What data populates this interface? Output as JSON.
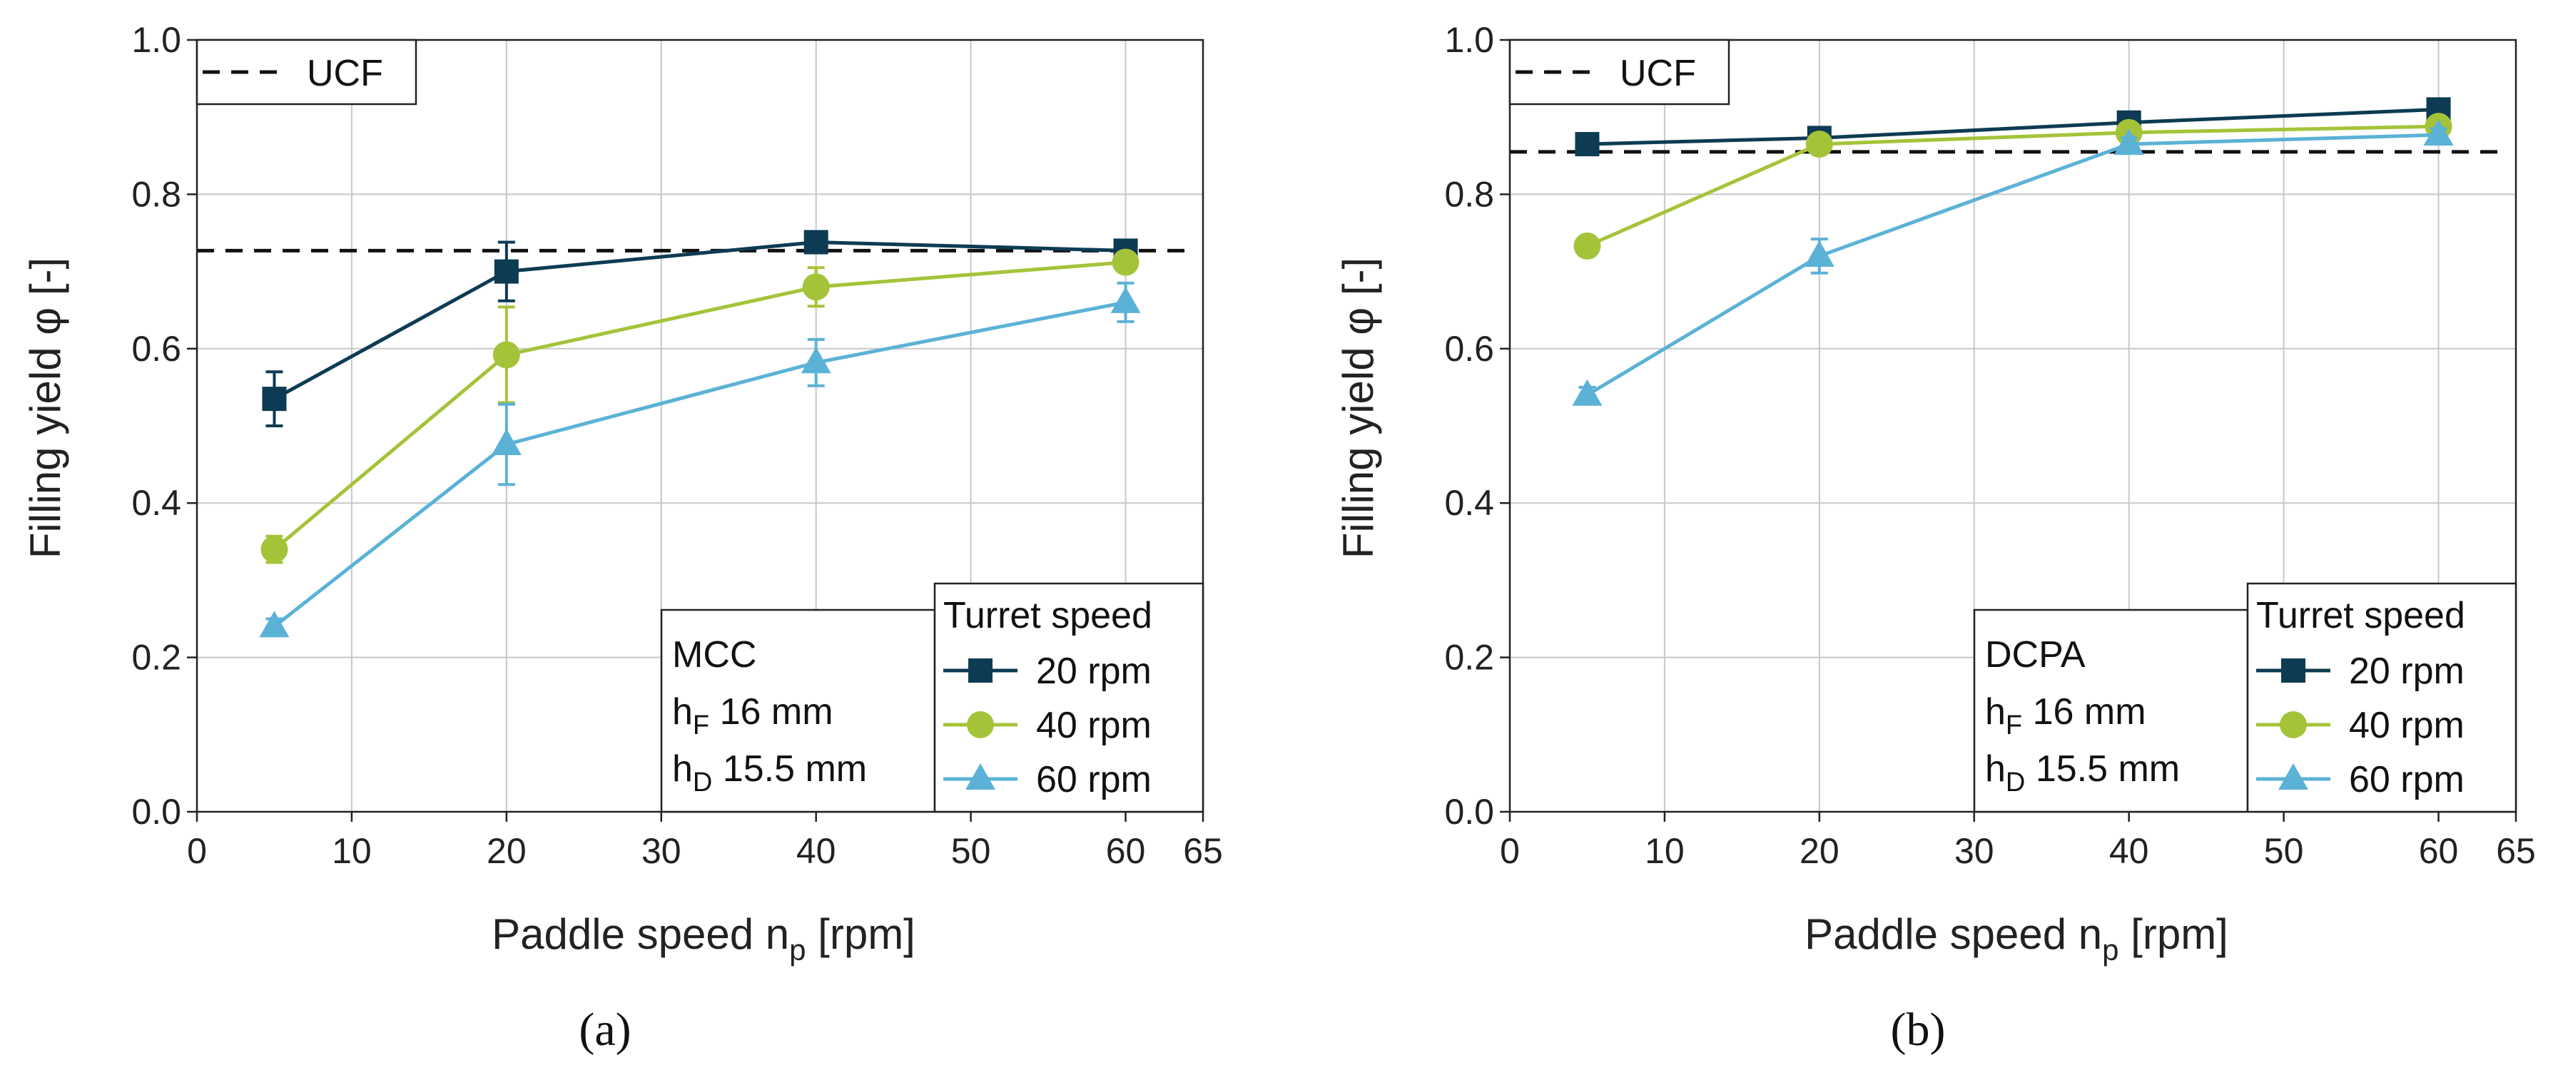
{
  "chart_data": [
    {
      "type": "line",
      "panel": "(a)",
      "x": [
        5,
        20,
        40,
        60
      ],
      "series": [
        {
          "name": "20 rpm",
          "values": [
            0.535,
            0.7,
            0.738,
            0.727
          ],
          "errors": [
            0.035,
            0.038,
            0.01,
            0.01
          ],
          "color": "#0d3b53",
          "marker": "square"
        },
        {
          "name": "40 rpm",
          "values": [
            0.34,
            0.592,
            0.68,
            0.712
          ],
          "errors": [
            0.017,
            0.062,
            0.025,
            0.012
          ],
          "color": "#a5c339",
          "marker": "circle"
        },
        {
          "name": "60 rpm",
          "values": [
            0.24,
            0.476,
            0.582,
            0.66
          ],
          "errors": [
            0.01,
            0.052,
            0.03,
            0.025
          ],
          "color": "#5bb2d6",
          "marker": "triangle"
        }
      ],
      "ucf": 0.727,
      "ucf_label": "UCF",
      "xlabel_main": "Paddle speed n",
      "xlabel_sub": "p",
      "xlabel_unit": " [rpm]",
      "ylabel": "Filling yield φ [-]",
      "xlim": [
        0,
        65
      ],
      "ylim": [
        0,
        1.0
      ],
      "xticks": [
        0,
        10,
        20,
        30,
        40,
        50,
        60,
        65
      ],
      "yticks": [
        "0.0",
        "0.2",
        "0.4",
        "0.6",
        "0.8",
        "1.0"
      ],
      "legend_title": "Turret speed",
      "info": {
        "material": "MCC",
        "hf_main": "h",
        "hf_sub": "F",
        "hf_value": " 16 mm",
        "hd_main": "h",
        "hd_sub": "D",
        "hd_value": " 15.5 mm"
      }
    },
    {
      "type": "line",
      "panel": "(b)",
      "x": [
        5,
        20,
        40,
        60
      ],
      "series": [
        {
          "name": "20 rpm",
          "values": [
            0.865,
            0.873,
            0.893,
            0.91
          ],
          "errors": [
            0.008,
            0.008,
            0.006,
            0.006
          ],
          "color": "#0d3b53",
          "marker": "square"
        },
        {
          "name": "40 rpm",
          "values": [
            0.733,
            0.865,
            0.88,
            0.888
          ],
          "errors": [
            0.012,
            0.01,
            0.007,
            0.007
          ],
          "color": "#a5c339",
          "marker": "circle"
        },
        {
          "name": "60 rpm",
          "values": [
            0.54,
            0.72,
            0.865,
            0.877
          ],
          "errors": [
            0.01,
            0.022,
            0.008,
            0.008
          ],
          "color": "#5bb2d6",
          "marker": "triangle"
        }
      ],
      "ucf": 0.855,
      "ucf_label": "UCF",
      "xlabel_main": "Paddle speed n",
      "xlabel_sub": "p",
      "xlabel_unit": " [rpm]",
      "ylabel": "Filling yield φ [-]",
      "xlim": [
        0,
        65
      ],
      "ylim": [
        0,
        1.0
      ],
      "xticks": [
        0,
        10,
        20,
        30,
        40,
        50,
        60,
        65
      ],
      "yticks": [
        "0.0",
        "0.2",
        "0.4",
        "0.6",
        "0.8",
        "1.0"
      ],
      "legend_title": "Turret speed",
      "info": {
        "material": "DCPA",
        "hf_main": "h",
        "hf_sub": "F",
        "hf_value": " 16 mm",
        "hd_main": "h",
        "hd_sub": "D",
        "hd_value": " 15.5 mm"
      }
    }
  ]
}
